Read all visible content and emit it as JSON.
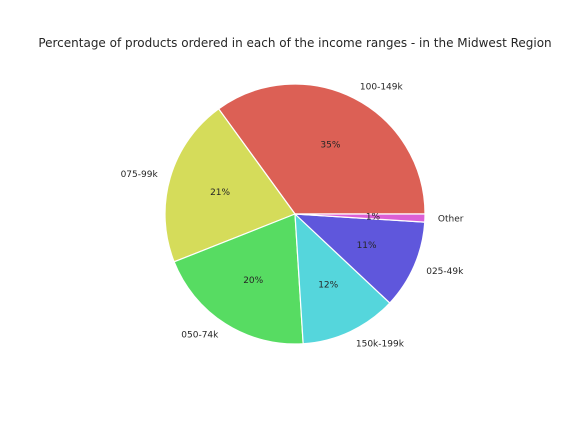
{
  "chart_data": {
    "type": "pie",
    "title": "Percentage of products ordered in each of the income ranges - in the Midwest Region",
    "start_angle_deg": 0,
    "direction": "counterclockwise",
    "slices": [
      {
        "label": "100-149k",
        "value": 35,
        "pct_label": "35%",
        "color": "#dc6055"
      },
      {
        "label": "075-99k",
        "value": 21,
        "pct_label": "21%",
        "color": "#d5dc5a"
      },
      {
        "label": "050-74k",
        "value": 20,
        "pct_label": "20%",
        "color": "#57dc62"
      },
      {
        "label": "150k-199k",
        "value": 12,
        "pct_label": "12%",
        "color": "#55d6dc"
      },
      {
        "label": "025-49k",
        "value": 11,
        "pct_label": "11%",
        "color": "#5f57dc"
      },
      {
        "label": "Other",
        "value": 1,
        "pct_label": "1%",
        "color": "#dc5fd6"
      }
    ]
  }
}
